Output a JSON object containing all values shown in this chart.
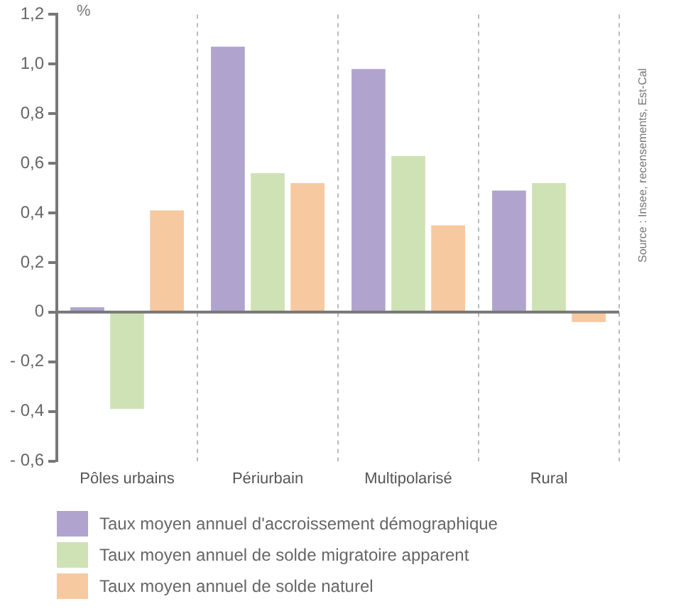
{
  "chart_data": {
    "type": "bar",
    "ylabel": "%",
    "categories": [
      "Pôles urbains",
      "Périurbain",
      "Multipolarisé",
      "Rural"
    ],
    "series": [
      {
        "name": "Taux moyen annuel d'accroissement démographique",
        "color": "#b0a4cf",
        "values": [
          0.02,
          1.07,
          0.98,
          0.49
        ]
      },
      {
        "name": "Taux moyen annuel de solde migratoire apparent",
        "color": "#cfe2b5",
        "values": [
          -0.39,
          0.56,
          0.63,
          0.52
        ]
      },
      {
        "name": "Taux moyen annuel de solde naturel",
        "color": "#f7c9a0",
        "values": [
          0.41,
          0.52,
          0.35,
          -0.04
        ]
      }
    ],
    "ylim": [
      -0.6,
      1.2
    ],
    "yticks": [
      {
        "value": -0.6,
        "label": "- 0,6"
      },
      {
        "value": -0.4,
        "label": "- 0,4"
      },
      {
        "value": -0.2,
        "label": "- 0,2"
      },
      0,
      {
        "value": 0.2,
        "label": "0,2"
      },
      {
        "value": 0.4,
        "label": "0,4"
      },
      {
        "value": 0.6,
        "label": "0,6"
      },
      {
        "value": 0.8,
        "label": "0,8"
      },
      {
        "value": 1,
        "label": "1,0"
      },
      {
        "value": 1.2,
        "label": "1,2"
      }
    ],
    "grid": "x",
    "legend": "bottom",
    "annotations": [
      "Source : Insee, recensements, Est-Cal"
    ]
  }
}
